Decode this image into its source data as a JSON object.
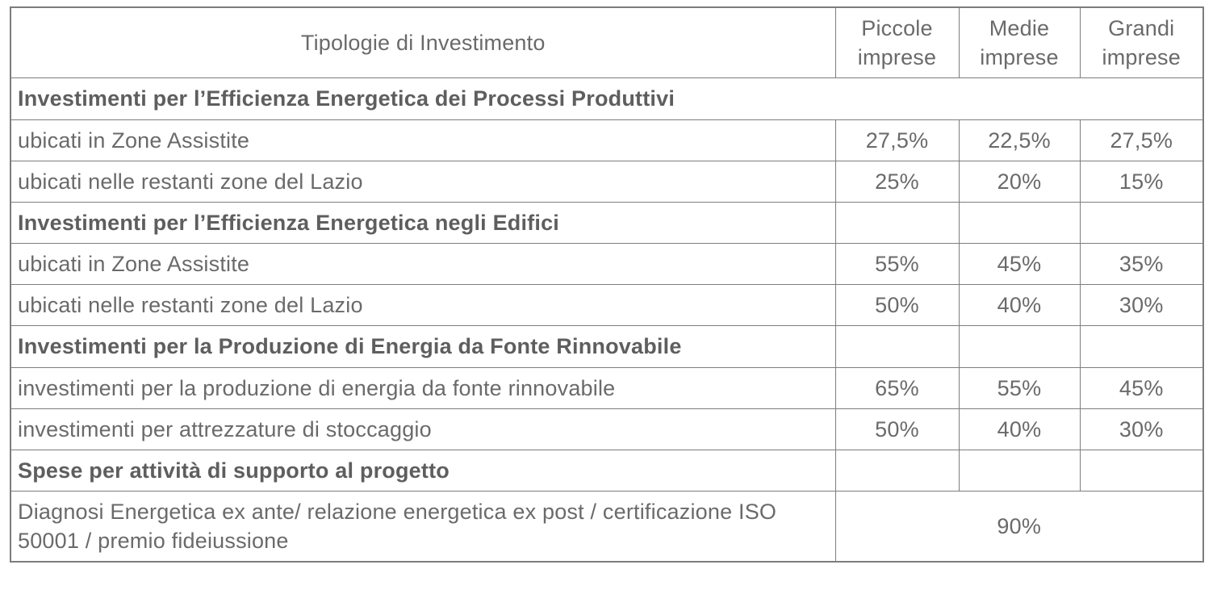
{
  "colors": {
    "text": "#6a6a6a",
    "section_text": "#5e5e5e",
    "border": "#7d7d7d",
    "background": "#ffffff"
  },
  "table": {
    "header": {
      "col_label": "Tipologie di Investimento",
      "col_small": "Piccole imprese",
      "col_medium": "Medie imprese",
      "col_large": "Grandi imprese"
    },
    "rows": [
      {
        "type": "section_full",
        "label": "Investimenti per l’Efficienza Energetica dei Processi Produttivi"
      },
      {
        "type": "data",
        "label": "ubicati in Zone Assistite",
        "values": [
          "27,5%",
          "22,5%",
          "27,5%"
        ]
      },
      {
        "type": "data",
        "label": "ubicati nelle restanti zone del Lazio",
        "values": [
          "25%",
          "20%",
          "15%"
        ]
      },
      {
        "type": "section",
        "label": "Investimenti per l’Efficienza Energetica negli Edifici"
      },
      {
        "type": "data",
        "label": "ubicati in Zone Assistite",
        "values": [
          "55%",
          "45%",
          "35%"
        ]
      },
      {
        "type": "data",
        "label": "ubicati nelle restanti zone del Lazio",
        "values": [
          "50%",
          "40%",
          "30%"
        ]
      },
      {
        "type": "section",
        "label": "Investimenti per la Produzione di Energia da Fonte Rinnovabile"
      },
      {
        "type": "data",
        "label": "investimenti per la produzione di energia da fonte rinnovabile",
        "values": [
          "65%",
          "55%",
          "45%"
        ]
      },
      {
        "type": "data",
        "label": "investimenti per attrezzature di stoccaggio",
        "values": [
          "50%",
          "40%",
          "30%"
        ]
      },
      {
        "type": "section",
        "label": "Spese per attività di supporto al progetto"
      },
      {
        "type": "span",
        "label": "Diagnosi Energetica ex ante/ relazione energetica ex post / certificazione ISO 50001 / premio fideiussione",
        "value": "90%"
      }
    ]
  }
}
